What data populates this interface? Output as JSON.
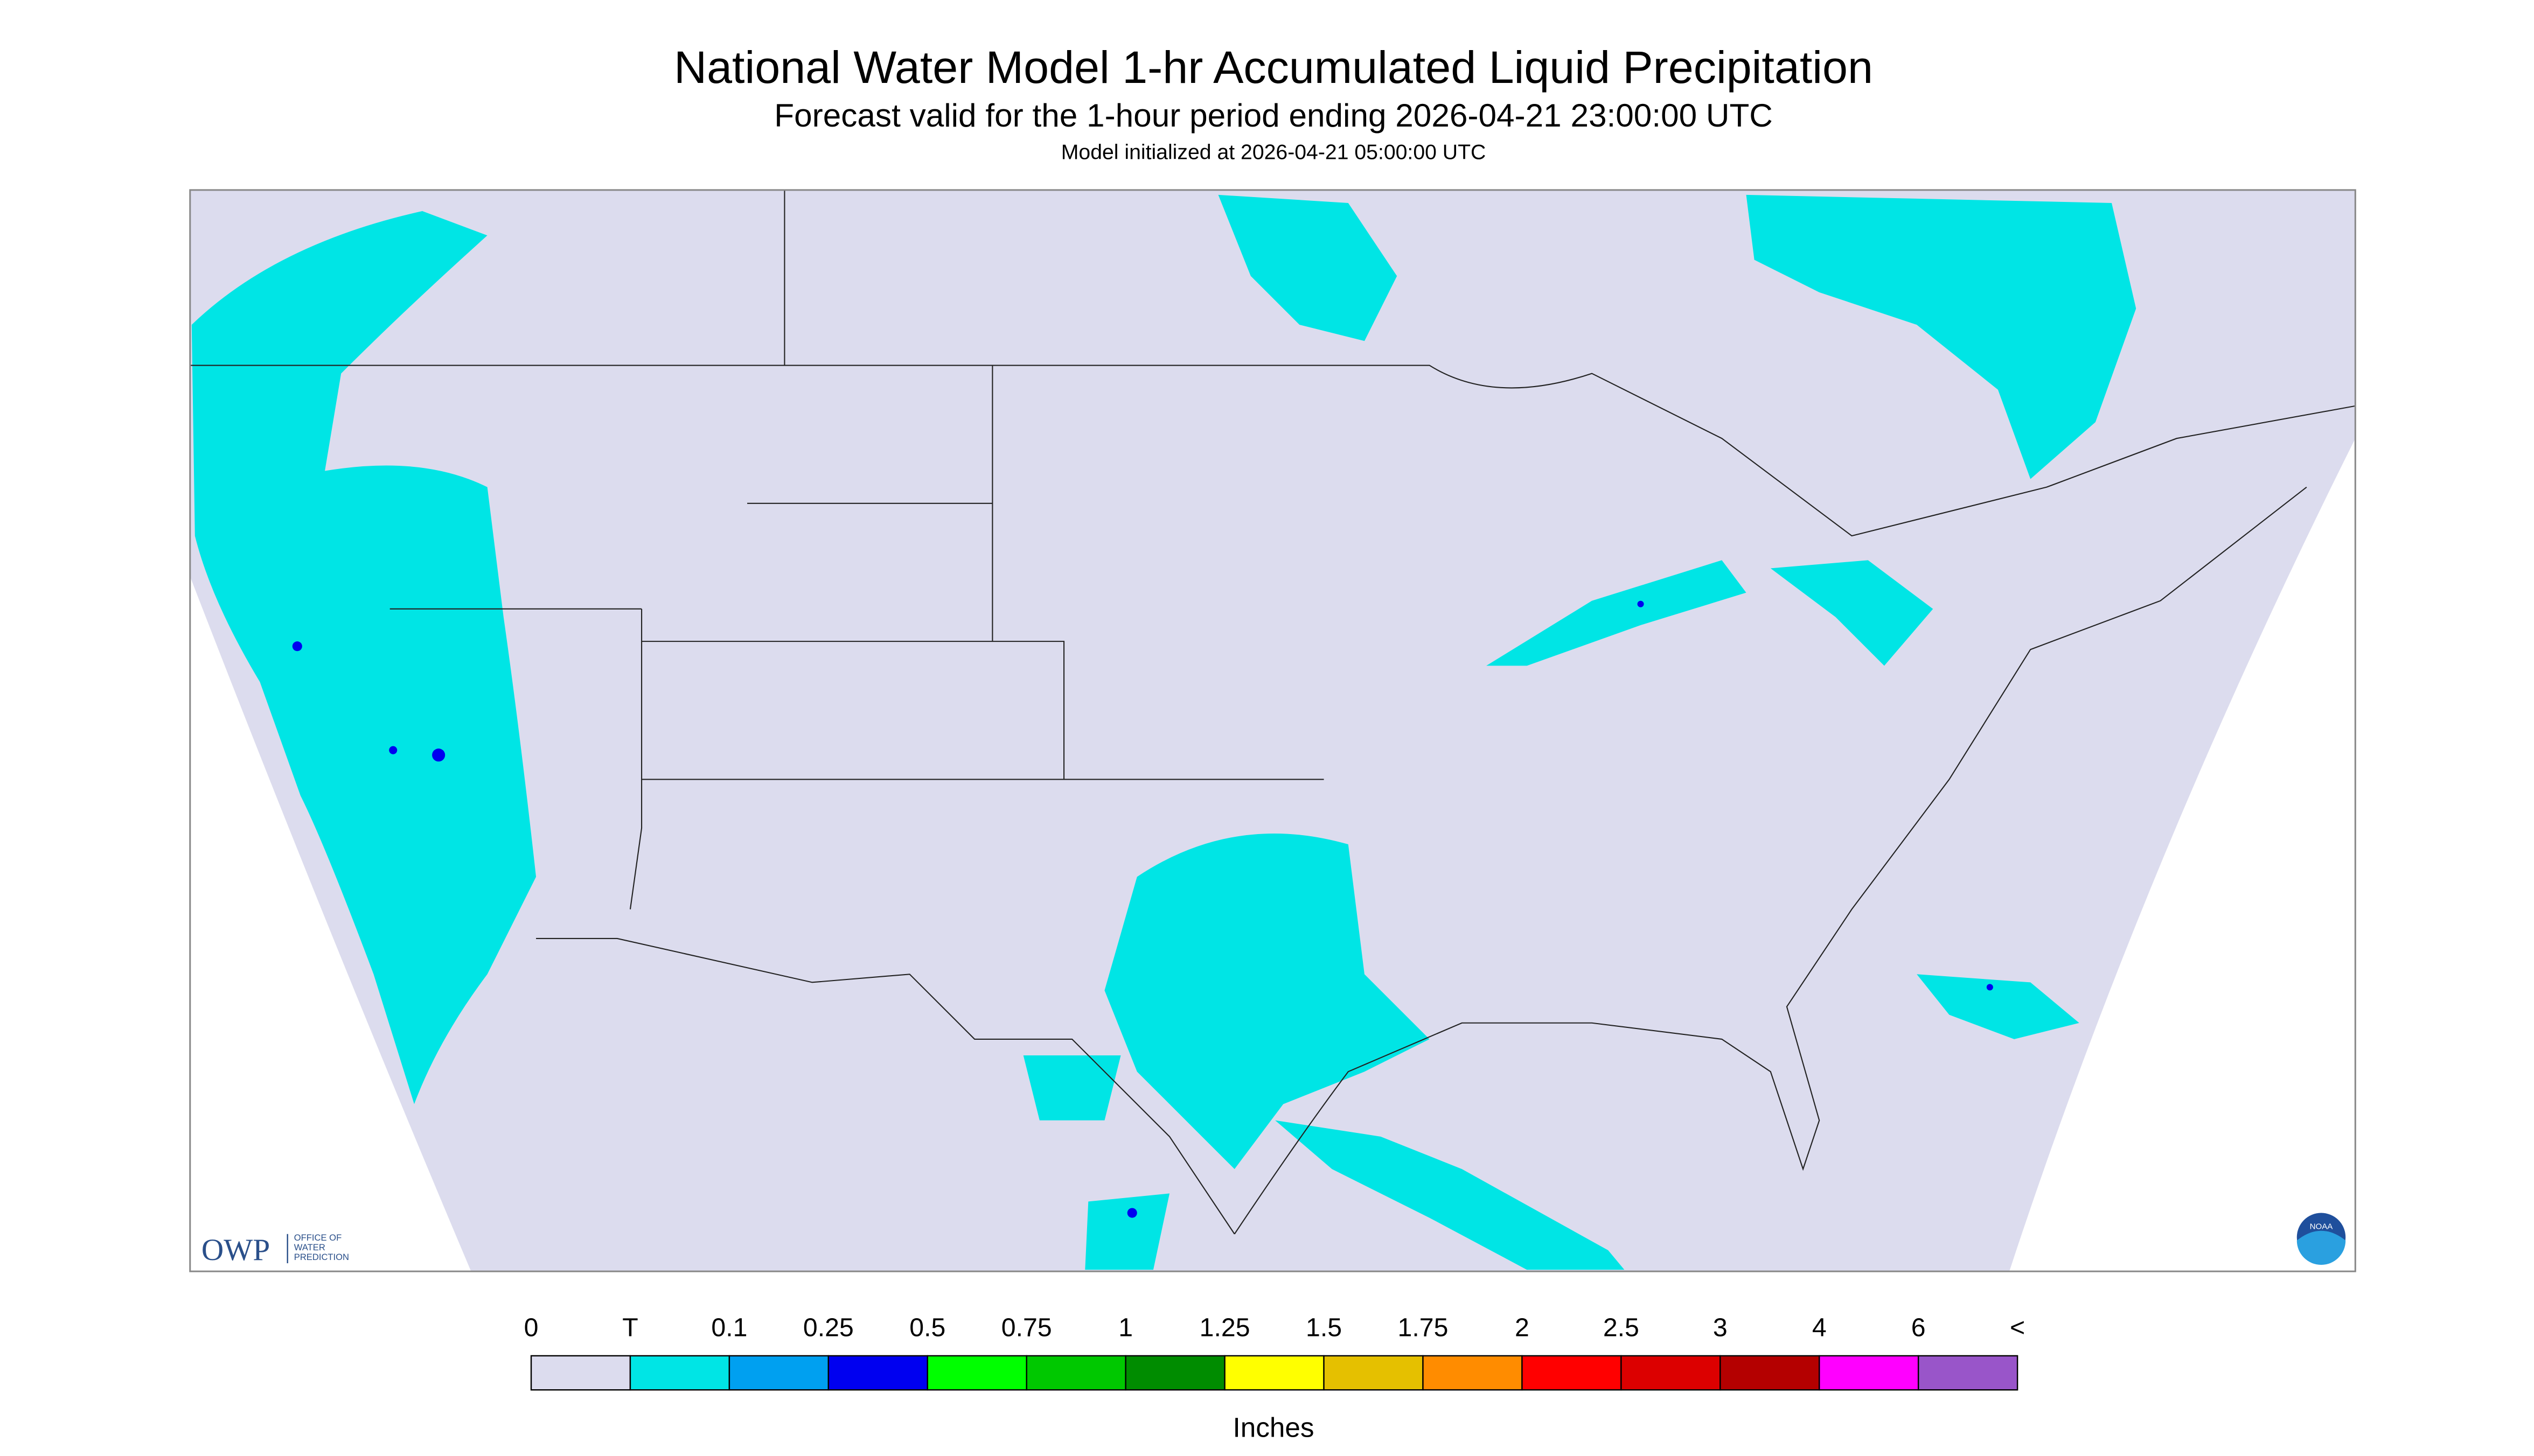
{
  "header": {
    "title": "National Water Model 1-hr Accumulated Liquid Precipitation",
    "subtitle": "Forecast valid for the 1-hour period ending 2026-04-21 23:00:00 UTC",
    "note": "Model initialized at 2026-04-21 05:00:00 UTC"
  },
  "legend": {
    "labels": [
      "0",
      "T",
      "0.1",
      "0.25",
      "0.5",
      "0.75",
      "1",
      "1.25",
      "1.5",
      "1.75",
      "2",
      "2.5",
      "3",
      "4",
      "6",
      "<"
    ],
    "colors": [
      "#dcdcee",
      "#00e5e5",
      "#00a0f0",
      "#0000f0",
      "#00ff00",
      "#00c800",
      "#008c00",
      "#ffff00",
      "#e5c000",
      "#ff8c00",
      "#ff0000",
      "#dc0000",
      "#b40000",
      "#ff00ff",
      "#9955c9"
    ],
    "unit": "Inches"
  },
  "logos": {
    "owp": "OWP",
    "owp_full": [
      "OFFICE OF",
      "WATER",
      "PREDICTION"
    ],
    "noaa": "NOAA"
  }
}
